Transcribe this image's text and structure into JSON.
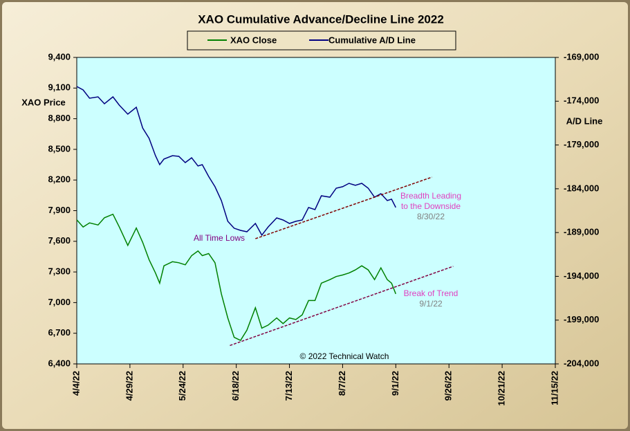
{
  "chart_data": {
    "type": "line",
    "title": "XAO Cumulative Advance/Decline Line 2022",
    "y_label": "XAO Price",
    "y2_label": "A/D Line",
    "credit": "© 2022 Technical Watch",
    "grid": false,
    "x": [
      "2022-04-04",
      "2022-04-07",
      "2022-04-10",
      "2022-04-14",
      "2022-04-17",
      "2022-04-21",
      "2022-04-24",
      "2022-04-28",
      "2022-05-02",
      "2022-05-05",
      "2022-05-08",
      "2022-05-11",
      "2022-05-13",
      "2022-05-15",
      "2022-05-19",
      "2022-05-22",
      "2022-05-25",
      "2022-05-28",
      "2022-05-31",
      "2022-06-02",
      "2022-06-05",
      "2022-06-08",
      "2022-06-11",
      "2022-06-14",
      "2022-06-17",
      "2022-06-20",
      "2022-06-23",
      "2022-06-27",
      "2022-06-30",
      "2022-07-03",
      "2022-07-07",
      "2022-07-10",
      "2022-07-13",
      "2022-07-16",
      "2022-07-19",
      "2022-07-22",
      "2022-07-25",
      "2022-07-28",
      "2022-08-01",
      "2022-08-04",
      "2022-08-07",
      "2022-08-10",
      "2022-08-13",
      "2022-08-16",
      "2022-08-19",
      "2022-08-22",
      "2022-08-25",
      "2022-08-28",
      "2022-08-30",
      "2022-09-01"
    ],
    "xlim": [
      "2022-04-04",
      "2022-11-15"
    ],
    "xticks": [
      {
        "value": "2022-04-04",
        "label": "4/4/22"
      },
      {
        "value": "2022-04-29",
        "label": "4/29/22"
      },
      {
        "value": "2022-05-24",
        "label": "5/24/22"
      },
      {
        "value": "2022-06-18",
        "label": "6/18/22"
      },
      {
        "value": "2022-07-13",
        "label": "7/13/22"
      },
      {
        "value": "2022-08-07",
        "label": "8/7/22"
      },
      {
        "value": "2022-09-01",
        "label": "9/1/22"
      },
      {
        "value": "2022-09-26",
        "label": "9/26/22"
      },
      {
        "value": "2022-10-21",
        "label": "10/21/22"
      },
      {
        "value": "2022-11-15",
        "label": "11/15/22"
      }
    ],
    "ylim": [
      6400,
      9400
    ],
    "yticks": [
      {
        "value": 6400,
        "label": "6,400"
      },
      {
        "value": 6700,
        "label": "6,700"
      },
      {
        "value": 7000,
        "label": "7,000"
      },
      {
        "value": 7300,
        "label": "7,300"
      },
      {
        "value": 7600,
        "label": "7,600"
      },
      {
        "value": 7900,
        "label": "7,900"
      },
      {
        "value": 8200,
        "label": "8,200"
      },
      {
        "value": 8500,
        "label": "8,500"
      },
      {
        "value": 8800,
        "label": "8,800"
      },
      {
        "value": 9100,
        "label": "9,100"
      },
      {
        "value": 9400,
        "label": "9,400"
      }
    ],
    "y2lim": [
      -204000,
      -169000
    ],
    "y2ticks": [
      {
        "value": -204000,
        "label": "-204,000"
      },
      {
        "value": -199000,
        "label": "-199,000"
      },
      {
        "value": -194000,
        "label": "-194,000"
      },
      {
        "value": -189000,
        "label": "-189,000"
      },
      {
        "value": -184000,
        "label": "-184,000"
      },
      {
        "value": -179000,
        "label": "-179,000"
      },
      {
        "value": -174000,
        "label": "-174,000"
      },
      {
        "value": -169000,
        "label": "-169,000"
      }
    ],
    "series": [
      {
        "name": "XAO Close",
        "color": "#008000",
        "values": [
          7810,
          7740,
          7780,
          7760,
          7830,
          7865,
          7740,
          7560,
          7730,
          7590,
          7420,
          7290,
          7190,
          7360,
          7400,
          7390,
          7370,
          7460,
          7505,
          7460,
          7480,
          7390,
          7085,
          6850,
          6660,
          6630,
          6730,
          6950,
          6750,
          6780,
          6850,
          6795,
          6850,
          6835,
          6880,
          7020,
          7020,
          7190,
          7225,
          7255,
          7270,
          7290,
          7320,
          7360,
          7320,
          7225,
          7340,
          7225,
          7190,
          7085
        ]
      },
      {
        "name": "Cumulative A/D Line",
        "color": "#000080",
        "axis": "y2",
        "values": [
          -172320,
          -172710,
          -173660,
          -173500,
          -174290,
          -173500,
          -174450,
          -175480,
          -174690,
          -177060,
          -178240,
          -180220,
          -181250,
          -180610,
          -180220,
          -180300,
          -181010,
          -180460,
          -181400,
          -181250,
          -182590,
          -183770,
          -185350,
          -187720,
          -188510,
          -188750,
          -188910,
          -187960,
          -189300,
          -188360,
          -187330,
          -187570,
          -187960,
          -187720,
          -187570,
          -186140,
          -186380,
          -184800,
          -184960,
          -183930,
          -183770,
          -183380,
          -183610,
          -183380,
          -183930,
          -184960,
          -184560,
          -185350,
          -185190,
          -186140
        ]
      }
    ],
    "trendlines": [
      {
        "axis": "y2",
        "color": "#800000",
        "x": [
          "2022-06-27",
          "2022-09-18"
        ],
        "values": [
          -189700,
          -182670
        ]
      },
      {
        "axis": "y",
        "color": "#800040",
        "x": [
          "2022-06-15",
          "2022-09-28"
        ],
        "values": [
          6580,
          7355
        ]
      }
    ],
    "annotations": [
      {
        "text": "All Time Lows",
        "color": "#800080"
      },
      {
        "text": "Breadth Leading",
        "color": "#e040c0"
      },
      {
        "text": "to the Downside",
        "color": "#e040c0"
      },
      {
        "text": "8/30/22",
        "color": "#808080"
      },
      {
        "text": "Break of Trend",
        "color": "#e040c0"
      },
      {
        "text": "9/1/22",
        "color": "#808080"
      }
    ]
  }
}
